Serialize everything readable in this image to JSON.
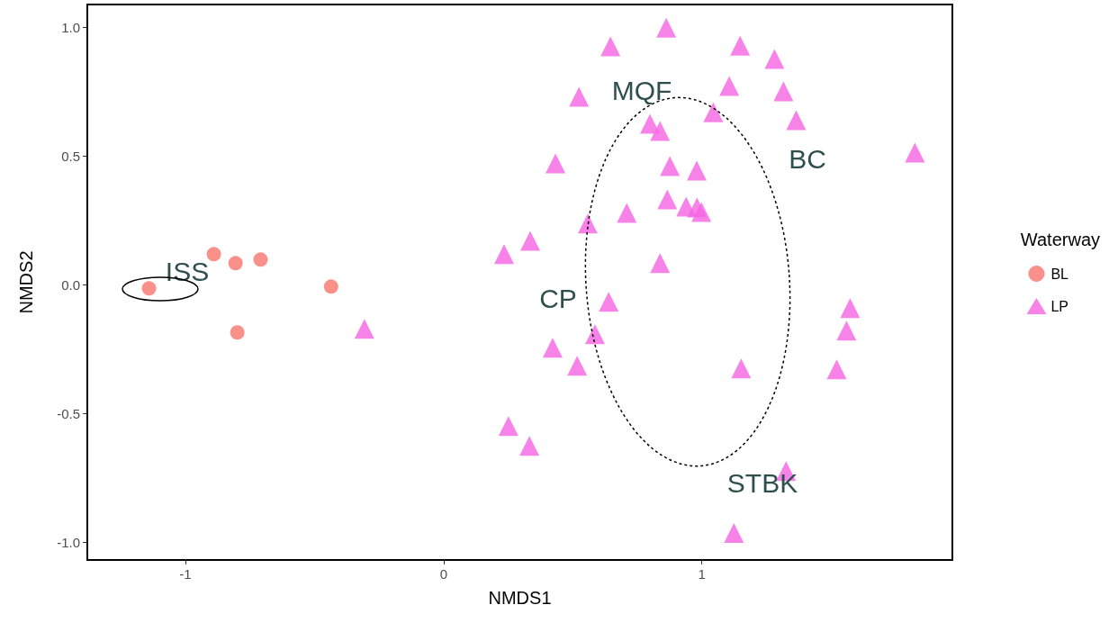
{
  "chart_data": {
    "type": "scatter",
    "xlabel": "NMDS1",
    "ylabel": "NMDS2",
    "legend_title": "Waterway",
    "legend": "right",
    "grid": false,
    "xlim": [
      -1.38,
      1.97
    ],
    "ylim": [
      -1.07,
      1.09
    ],
    "xticks": [
      -1,
      0,
      1
    ],
    "yticks": [
      {
        "value": -1,
        "label": "-1.0"
      },
      -0.5,
      {
        "value": 0,
        "label": "0.0"
      },
      0.5,
      {
        "value": 1,
        "label": "1.0"
      }
    ],
    "series": [
      {
        "name": "BL",
        "marker": "circle",
        "color": "#f8766d",
        "x": [
          -1.141,
          -0.89,
          -0.806,
          -0.709,
          -0.436,
          -0.799
        ],
        "values": [
          -0.014,
          0.119,
          0.084,
          0.098,
          -0.007,
          -0.185
        ]
      },
      {
        "name": "LP",
        "marker": "triangle",
        "color": "#f564e3",
        "x": [
          -0.307,
          0.234,
          0.335,
          0.558,
          0.433,
          0.524,
          0.646,
          0.862,
          1.148,
          1.281,
          1.316,
          1.365,
          1.106,
          1.044,
          0.799,
          0.838,
          0.876,
          0.98,
          0.866,
          0.939,
          0.981,
          0.998,
          0.709,
          0.838,
          0.639,
          0.422,
          0.586,
          0.517,
          1.825,
          1.574,
          1.56,
          1.522,
          1.152,
          0.251,
          0.332,
          1.326,
          1.124
        ],
        "values": [
          -0.171,
          0.119,
          0.171,
          0.238,
          0.472,
          0.731,
          0.927,
          1.0,
          0.93,
          0.878,
          0.752,
          0.64,
          0.773,
          0.671,
          0.626,
          0.598,
          0.462,
          0.444,
          0.332,
          0.304,
          0.301,
          0.283,
          0.28,
          0.084,
          -0.066,
          -0.245,
          -0.192,
          -0.315,
          0.514,
          -0.091,
          -0.178,
          -0.329,
          -0.325,
          -0.549,
          -0.626,
          -0.724,
          -0.965
        ]
      }
    ],
    "annotations": [
      "ISS",
      "MQF",
      "BC",
      "CP",
      "STBK"
    ]
  }
}
